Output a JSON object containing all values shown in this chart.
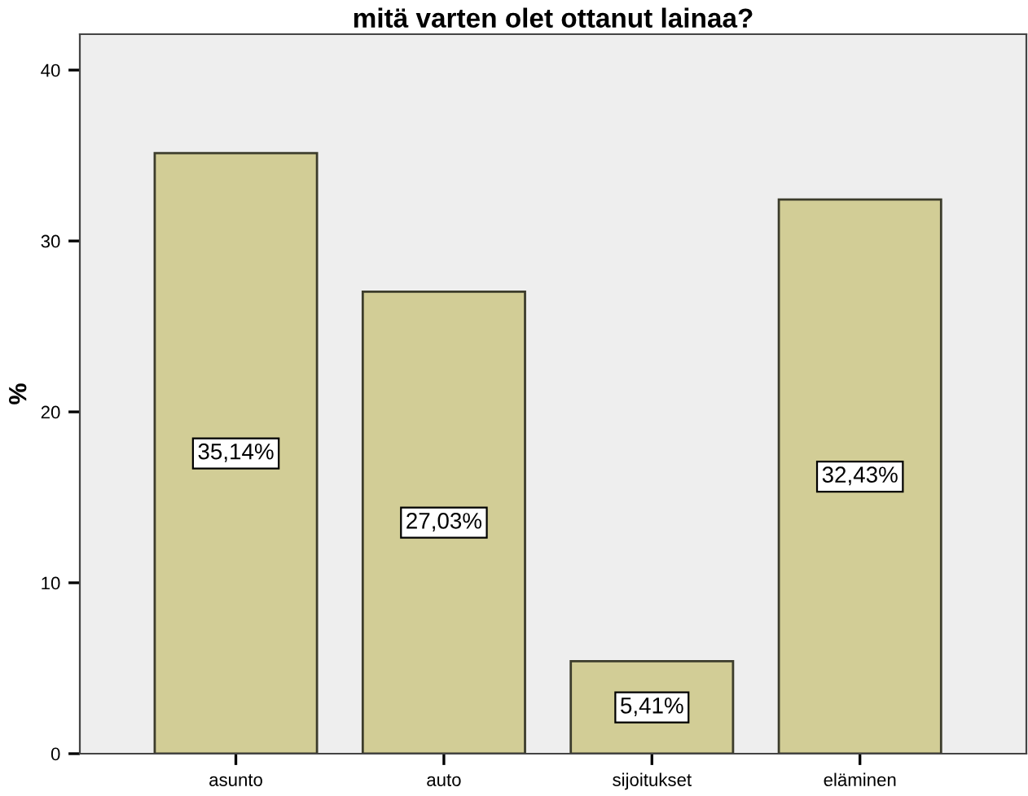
{
  "chart_data": {
    "type": "bar",
    "title": "mitä varten olet ottanut lainaa?",
    "ylabel": "%",
    "categories": [
      "asunto",
      "auto",
      "sijoitukset",
      "eläminen"
    ],
    "values": [
      35.14,
      27.03,
      5.41,
      32.43
    ],
    "value_labels": [
      "35,14%",
      "27,03%",
      "5,41%",
      "32,43%"
    ],
    "color": "#d2cd96",
    "ylim": [
      0,
      42.1
    ],
    "yticks": [
      0,
      10,
      20,
      30,
      40
    ],
    "grid": false,
    "legend": false
  }
}
